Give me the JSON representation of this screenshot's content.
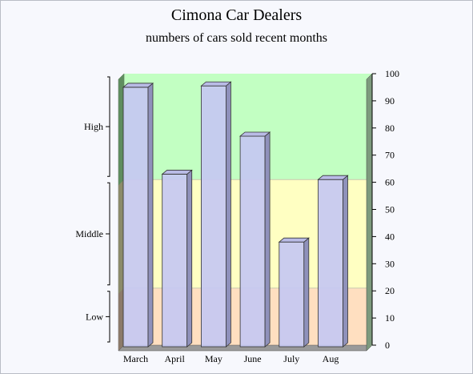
{
  "chart_data": {
    "type": "bar",
    "title": "Cimona Car Dealers",
    "subtitle": "numbers of cars sold recent months",
    "categories": [
      "March",
      "April",
      "May",
      "June",
      "July",
      "Aug"
    ],
    "values": [
      95,
      63,
      95.5,
      77,
      38,
      61
    ],
    "ylim": [
      0,
      100
    ],
    "ytick_values": [
      0,
      10,
      20,
      30,
      40,
      50,
      60,
      70,
      80,
      90,
      100
    ],
    "ytick_labels": [
      "0",
      "10",
      "20",
      "30",
      "40",
      "50",
      "60",
      "70",
      "80",
      "90",
      "100"
    ],
    "yaxis_position": "right",
    "bands": [
      {
        "label": "Low",
        "from": 0,
        "to": 21,
        "color": "#ffdfc0"
      },
      {
        "label": "Middle",
        "from": 21,
        "to": 61,
        "color": "#ffffc2"
      },
      {
        "label": "High",
        "from": 61,
        "to": 100,
        "color": "#c2ffc2"
      }
    ],
    "bar_color": "#c6c8f2",
    "grid": false,
    "legend": "none"
  }
}
